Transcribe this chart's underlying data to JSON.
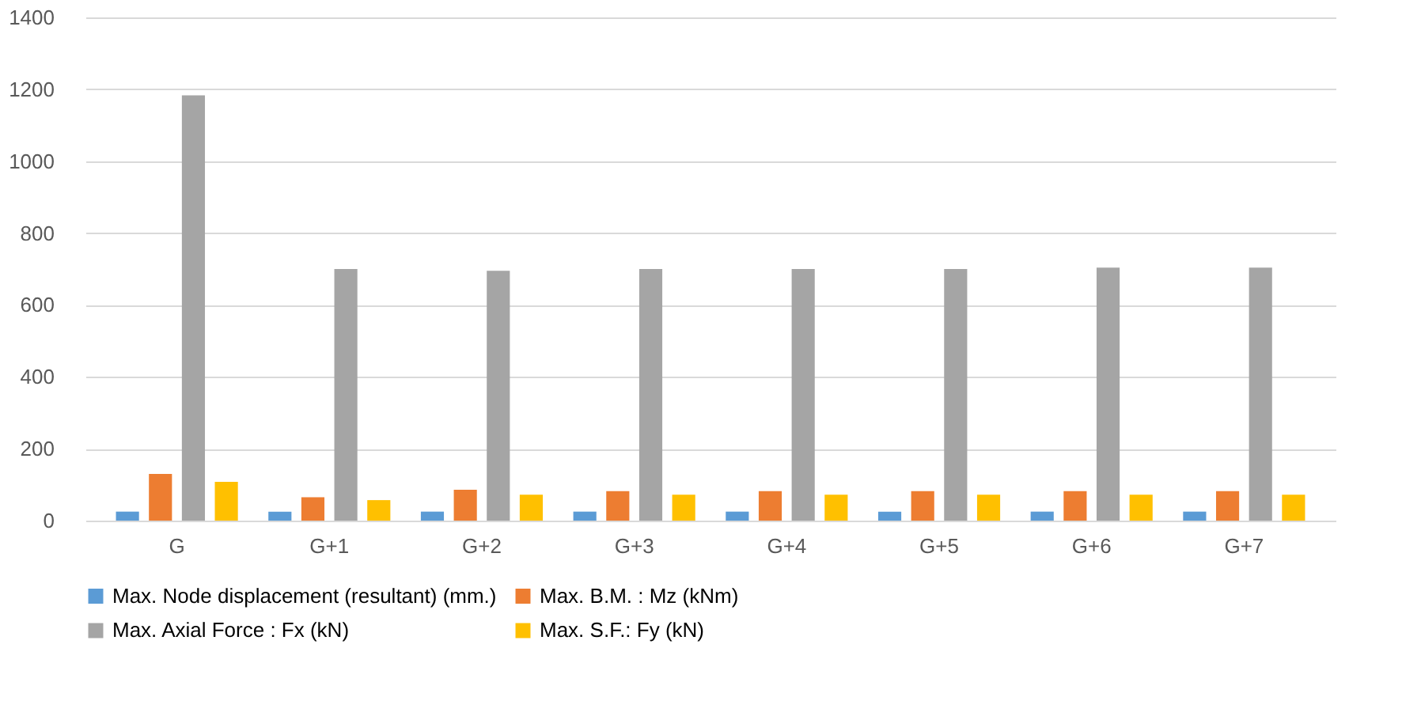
{
  "chart_data": {
    "type": "bar",
    "categories": [
      "G",
      "G+1",
      "G+2",
      "G+3",
      "G+4",
      "G+5",
      "G+6",
      "G+7"
    ],
    "series": [
      {
        "name": "Max. Node displacement (resultant) (mm.)",
        "color": "#5b9bd5",
        "values": [
          25,
          25,
          25,
          25,
          25,
          25,
          25,
          25
        ]
      },
      {
        "name": "Max. B.M. : Mz (kNm)",
        "color": "#ed7d31",
        "values": [
          130,
          65,
          86,
          82,
          82,
          82,
          82,
          82
        ]
      },
      {
        "name": "Max. Axial Force : Fx (kN)",
        "color": "#a5a5a5",
        "values": [
          1183,
          700,
          695,
          700,
          700,
          700,
          704,
          704
        ]
      },
      {
        "name": "Max. S.F.: Fy (kN)",
        "color": "#ffc000",
        "values": [
          108,
          57,
          72,
          72,
          72,
          72,
          72,
          72
        ]
      }
    ],
    "ylim": [
      0,
      1400
    ],
    "yticks": [
      0,
      200,
      400,
      600,
      800,
      1000,
      1200,
      1400
    ],
    "grid": "y",
    "legend": "bottom"
  }
}
